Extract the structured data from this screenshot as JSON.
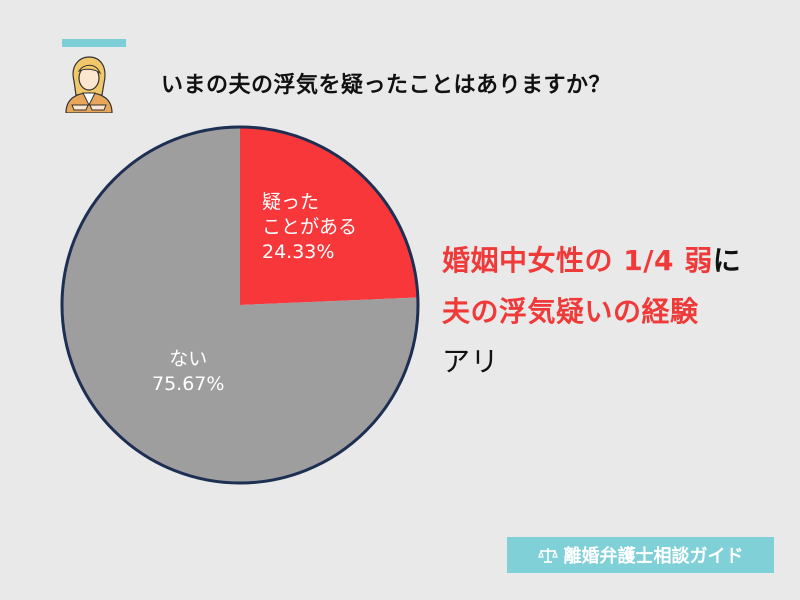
{
  "header": {
    "question": "いまの夫の浮気を疑ったことはありますか？"
  },
  "chart_data": {
    "type": "pie",
    "slices": [
      {
        "label_line1": "疑った",
        "label_line2": "ことがある",
        "value_text": "24.33%",
        "value": 24.33,
        "color": "#f8373a"
      },
      {
        "label_line1": "ない",
        "value_text": "75.67%",
        "value": 75.67,
        "color": "#9e9e9e"
      }
    ],
    "border_color": "#1d2f52",
    "title": "",
    "xlabel": "",
    "ylabel": ""
  },
  "caption": {
    "line1_red": "婚姻中女性の 1/4 弱",
    "line1_dark": "に",
    "line2": "夫の浮気疑いの経験",
    "line3": "アリ"
  },
  "brand": {
    "icon": "scale-icon",
    "label": "離婚弁護士相談ガイド"
  }
}
